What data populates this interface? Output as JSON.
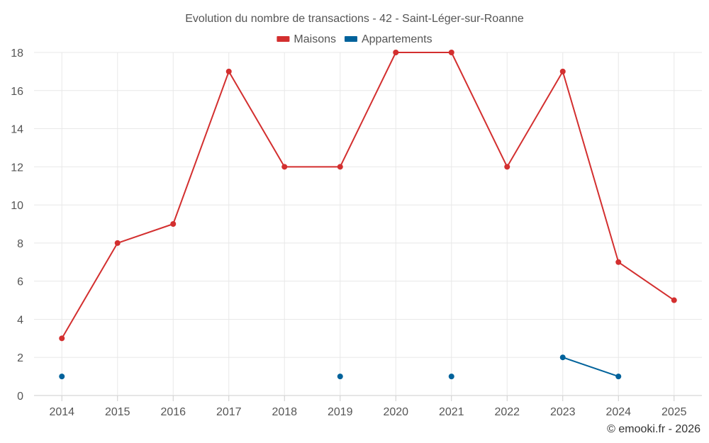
{
  "chart_data": {
    "type": "line",
    "title": "Evolution du nombre de transactions - 42 - Saint-Léger-sur-Roanne",
    "categories": [
      "2014",
      "2015",
      "2016",
      "2017",
      "2018",
      "2019",
      "2020",
      "2021",
      "2022",
      "2023",
      "2024",
      "2025"
    ],
    "ylim": [
      0,
      18
    ],
    "yticks": [
      0,
      2,
      4,
      6,
      8,
      10,
      12,
      14,
      16,
      18
    ],
    "grid": true,
    "legend_position": "top-center",
    "series": [
      {
        "name": "Maisons",
        "color": "#d32f2f",
        "values": [
          3,
          8,
          9,
          17,
          12,
          12,
          18,
          18,
          12,
          17,
          7,
          5
        ]
      },
      {
        "name": "Appartements",
        "color": "#00629b",
        "values": [
          1,
          null,
          null,
          null,
          null,
          1,
          null,
          1,
          null,
          2,
          1,
          null
        ]
      }
    ]
  },
  "footer": "© emooki.fr - 2026"
}
